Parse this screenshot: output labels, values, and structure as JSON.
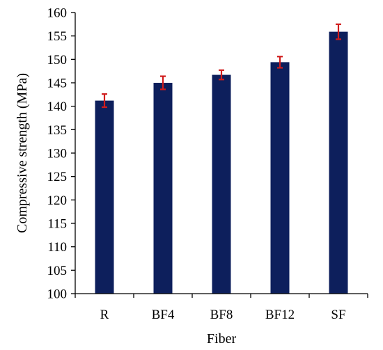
{
  "chart_data": {
    "type": "bar",
    "title": "",
    "xlabel": "Fiber",
    "ylabel": "Compressive strength  (MPa)",
    "categories": [
      "R",
      "BF4",
      "BF8",
      "BF12",
      "SF"
    ],
    "values": [
      141.2,
      145.0,
      146.7,
      149.4,
      155.9
    ],
    "errors": [
      1.4,
      1.4,
      1.0,
      1.2,
      1.6
    ],
    "ylim": [
      100,
      160
    ],
    "yticks": [
      "100",
      "105",
      "110",
      "115",
      "120",
      "125",
      "130",
      "135",
      "140",
      "145",
      "150",
      "155",
      "160"
    ],
    "grid": false,
    "legend": "none",
    "colors": {
      "bar": "#0d1f5c",
      "error_bar": "#d01c1c",
      "axis": "#000000"
    }
  }
}
